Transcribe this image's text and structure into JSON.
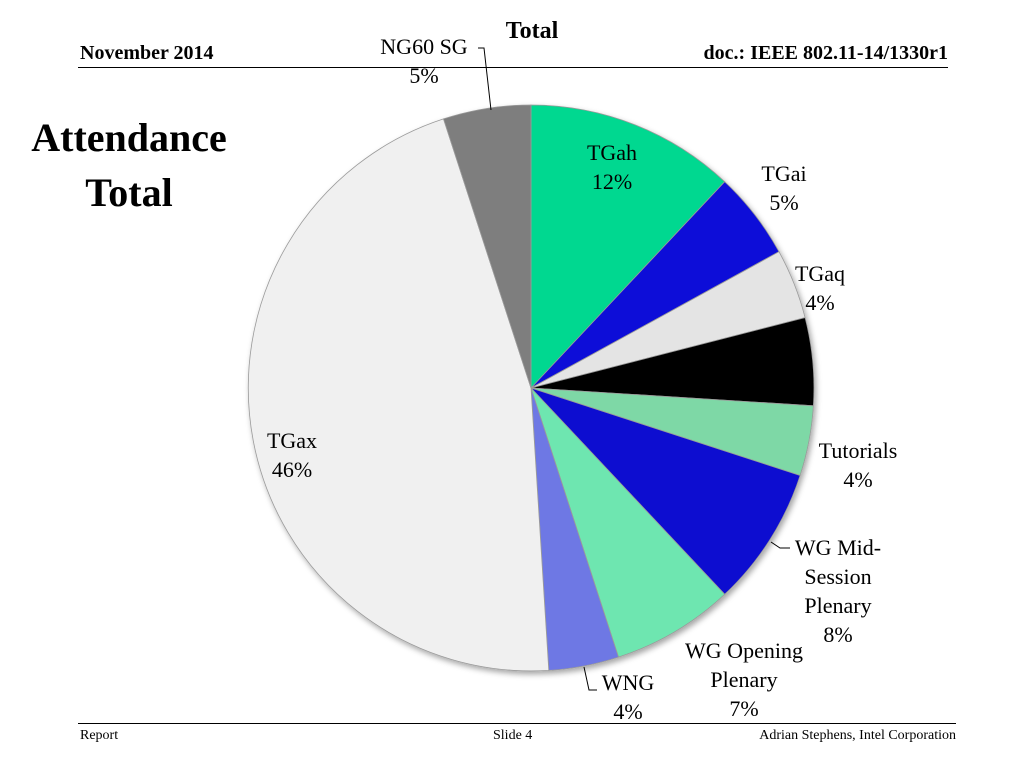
{
  "header": {
    "date": "November 2014",
    "doc": "doc.: IEEE 802.11-14/1330r1"
  },
  "slide": {
    "title_line1": "Attendance",
    "title_line2": "Total"
  },
  "footer": {
    "left": "Report",
    "center": "Slide 4",
    "right": "Adrian Stephens, Intel Corporation"
  },
  "chart_data": {
    "type": "pie",
    "title": "Total",
    "start": "12 o'clock",
    "direction": "clockwise",
    "slices": [
      {
        "label": "TGah",
        "value": 12,
        "value_label": "12%",
        "color": "#00d890"
      },
      {
        "label": "TGai",
        "value": 5,
        "value_label": "5%",
        "color": "#0c10d8"
      },
      {
        "label": "TGaq",
        "value": 4,
        "value_label": "4%",
        "color": "#e4e4e4"
      },
      {
        "label": "",
        "value": 5,
        "value_label": "",
        "color": "#040404"
      },
      {
        "label": "Tutorials",
        "value": 4,
        "value_label": "4%",
        "color": "#7ed8a6"
      },
      {
        "label": "WG Mid-Session Plenary",
        "value": 8,
        "value_label": "8%",
        "color": "#0a0ad0"
      },
      {
        "label": "WG Opening Plenary",
        "value": 7,
        "value_label": "7%",
        "color": "#6ee6b0"
      },
      {
        "label": "WNG",
        "value": 4,
        "value_label": "4%",
        "color": "#6e78e4"
      },
      {
        "label": "TGax",
        "value": 46,
        "value_label": "46%",
        "color": "#f0f0f0"
      },
      {
        "label": "NG60 SG",
        "value": 5,
        "value_label": "5%",
        "color": "#7e7e7e"
      }
    ],
    "label_lines": {
      "TGah": [
        "TGah",
        "12%"
      ],
      "TGai": [
        "TGai",
        "5%"
      ],
      "TGaq": [
        "TGaq",
        "4%"
      ],
      "Tutorials": [
        "Tutorials",
        "4%"
      ],
      "WG Mid-Session Plenary": [
        "WG Mid-",
        "Session",
        "Plenary",
        "8%"
      ],
      "WG Opening Plenary": [
        "WG Opening",
        "Plenary",
        "7%"
      ],
      "WNG": [
        "WNG",
        "4%"
      ],
      "TGax": [
        "TGax",
        "46%"
      ],
      "NG60 SG": [
        "NG60 SG",
        "5%"
      ]
    }
  }
}
